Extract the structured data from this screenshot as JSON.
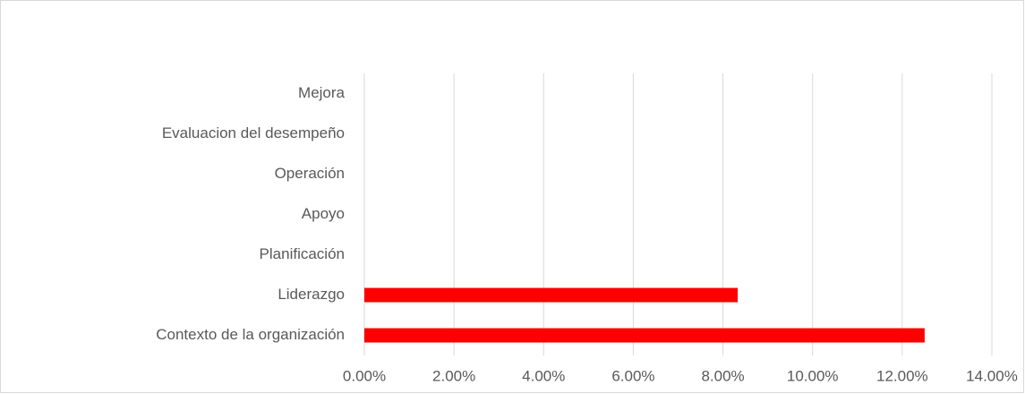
{
  "chart_data": {
    "type": "barh",
    "categories": [
      "Contexto de la organización",
      "Liderazgo",
      "Planificación",
      "Apoyo",
      "Operación",
      "Evaluacion del desempeño",
      "Mejora"
    ],
    "values": [
      12.5,
      8.33,
      0,
      0,
      0,
      0,
      0
    ],
    "color": "#ff0000",
    "xlim": [
      0,
      14
    ],
    "xticks": [
      {
        "value": 0,
        "label": "0.00%"
      },
      {
        "value": 2,
        "label": "2.00%"
      },
      {
        "value": 4,
        "label": "4.00%"
      },
      {
        "value": 6,
        "label": "6.00%"
      },
      {
        "value": 8,
        "label": "8.00%"
      },
      {
        "value": 10,
        "label": "10.00%"
      },
      {
        "value": 12,
        "label": "12.00%"
      },
      {
        "value": 14,
        "label": "14.00%"
      }
    ],
    "grid": true
  }
}
